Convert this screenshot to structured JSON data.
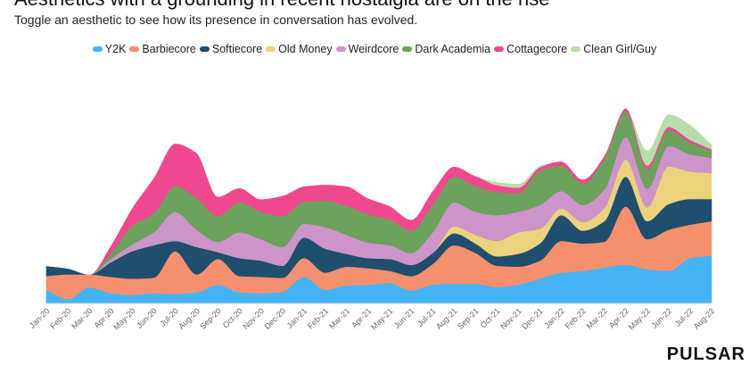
{
  "header": {
    "title": "Aesthetics with a grounding in recent nostalgia are on the rise",
    "subtitle": "Toggle an aesthetic to see how its presence in conversation has evolved."
  },
  "brand": {
    "logo_text": "PULSAR"
  },
  "chart_data": {
    "type": "area",
    "stacked": true,
    "legend_position": "top-center",
    "grid": false,
    "categories": [
      "Jan-20",
      "Feb-20",
      "Mar-20",
      "Apr-20",
      "May-20",
      "Jun-20",
      "Jul-20",
      "Aug-20",
      "Sep-20",
      "Oct-20",
      "Nov-20",
      "Dec-20",
      "Jan-21",
      "Feb-21",
      "Mar-21",
      "Apr-21",
      "May-21",
      "Jun-21",
      "Jul-21",
      "Aug-21",
      "Sep-21",
      "Oct-21",
      "Nov-21",
      "Dec-21",
      "Jan-22",
      "Feb-22",
      "Mar-22",
      "Apr-22",
      "May-22",
      "Jun-22",
      "Jul-22",
      "Aug-22"
    ],
    "series": [
      {
        "name": "Y2K",
        "color": "#45b3f5",
        "values": [
          16,
          5,
          19,
          12,
          10,
          12,
          11,
          13,
          22,
          13,
          12,
          14,
          31,
          16,
          21,
          22,
          24,
          15,
          22,
          23,
          23,
          19,
          22,
          29,
          36,
          38,
          42,
          45,
          40,
          38,
          53,
          56
        ]
      },
      {
        "name": "Barbiecore",
        "color": "#f4906e",
        "values": [
          16,
          29,
          15,
          19,
          19,
          18,
          50,
          21,
          30,
          19,
          19,
          16,
          22,
          20,
          22,
          19,
          14,
          17,
          24,
          45,
          36,
          25,
          21,
          21,
          37,
          32,
          30,
          68,
          35,
          48,
          39,
          40
        ]
      },
      {
        "name": "Softiecore",
        "color": "#1f4e6e",
        "values": [
          12,
          7,
          0,
          17,
          32,
          38,
          12,
          32,
          8,
          21,
          19,
          14,
          24,
          28,
          15,
          12,
          14,
          13,
          13,
          14,
          11,
          11,
          15,
          20,
          30,
          15,
          24,
          35,
          21,
          30,
          30,
          26
        ]
      },
      {
        "name": "Old Money",
        "color": "#ebd37c",
        "values": [
          0,
          0,
          0,
          0,
          0,
          0,
          0,
          0,
          0,
          0,
          0,
          0,
          0,
          0,
          0,
          0,
          0,
          0,
          0,
          8,
          10,
          18,
          25,
          17,
          8,
          10,
          15,
          20,
          16,
          44,
          32,
          30
        ]
      },
      {
        "name": "Weirdcore",
        "color": "#cc94c9",
        "values": [
          0,
          0,
          0,
          4,
          8,
          15,
          34,
          20,
          12,
          30,
          25,
          22,
          16,
          25,
          22,
          18,
          16,
          14,
          24,
          28,
          27,
          30,
          24,
          28,
          20,
          20,
          22,
          26,
          22,
          24,
          20,
          18
        ]
      },
      {
        "name": "Dark Academia",
        "color": "#6ca15e",
        "values": [
          0,
          0,
          0,
          6,
          22,
          22,
          30,
          37,
          30,
          35,
          32,
          36,
          26,
          31,
          34,
          33,
          30,
          26,
          32,
          30,
          30,
          27,
          22,
          40,
          30,
          25,
          36,
          30,
          23,
          18,
          14,
          8
        ]
      },
      {
        "name": "Cottagecore",
        "color": "#f0488f",
        "values": [
          0,
          0,
          0,
          10,
          21,
          42,
          50,
          53,
          23,
          17,
          15,
          24,
          18,
          19,
          23,
          19,
          16,
          13,
          17,
          12,
          12,
          8,
          6,
          4,
          5,
          5,
          4,
          4,
          4,
          4,
          3,
          2
        ]
      },
      {
        "name": "Clean Girl/Guy",
        "color": "#b8dcaa",
        "values": [
          0,
          0,
          0,
          0,
          0,
          0,
          0,
          0,
          0,
          0,
          0,
          0,
          0,
          0,
          0,
          0,
          0,
          0,
          0,
          0,
          0,
          4,
          5,
          2,
          0,
          0,
          0,
          0,
          18,
          15,
          18,
          6
        ]
      }
    ]
  }
}
